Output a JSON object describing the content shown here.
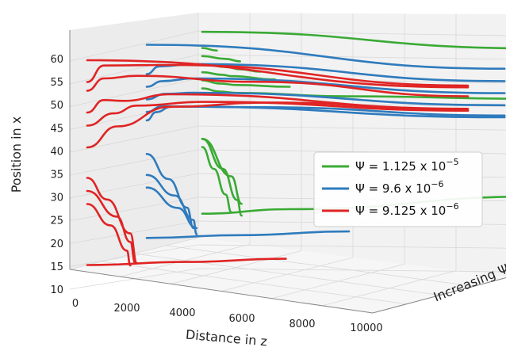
{
  "chart_data": {
    "type": "line",
    "projection": "3d",
    "xlabel": "Distance in z",
    "ylabel": "Position in x",
    "zlabel": "Increasing Ψ",
    "x_ticks": [
      "0",
      "2000",
      "4000",
      "6000",
      "8000",
      "10000"
    ],
    "y_ticks": [
      "10",
      "15",
      "20",
      "25",
      "30",
      "35",
      "40",
      "45",
      "50",
      "55",
      "60"
    ],
    "xlim": [
      0,
      11500
    ],
    "ylim": [
      8,
      68
    ],
    "grid": true,
    "legend_position": "right",
    "series": [
      {
        "name": "Ψ = 1.125 x 10⁻⁵",
        "label_base": "Ψ = 1.125 x 10",
        "label_exp": "−5",
        "color": "#3aaa35",
        "depth": 2,
        "lines": [
          [
            [
              0,
              37.5
            ],
            [
              400,
              32
            ],
            [
              800,
              25.5
            ],
            [
              1000,
              21
            ]
          ],
          [
            [
              0,
              39.5
            ],
            [
              700,
              32
            ],
            [
              1200,
              24
            ],
            [
              1350,
              20
            ]
          ],
          [
            [
              0,
              39.5
            ],
            [
              1000,
              30
            ],
            [
              1350,
              23
            ]
          ],
          [
            [
              0,
              21
            ],
            [
              3000,
              21
            ],
            [
              11500,
              21
            ]
          ],
          [
            [
              0,
              52
            ],
            [
              600,
              51.3
            ],
            [
              1200,
              51
            ],
            [
              5000,
              50.5
            ],
            [
              11500,
              50.5
            ]
          ],
          [
            [
              0,
              54
            ],
            [
              600,
              53.3
            ],
            [
              1200,
              53
            ],
            [
              3000,
              52.8
            ]
          ],
          [
            [
              0,
              56
            ],
            [
              700,
              55.5
            ],
            [
              1000,
              55.2
            ],
            [
              2500,
              54.6
            ]
          ],
          [
            [
              0,
              58
            ],
            [
              800,
              57.5
            ],
            [
              1300,
              57
            ],
            [
              2000,
              56.5
            ]
          ],
          [
            [
              0,
              60
            ],
            [
              800,
              59.5
            ],
            [
              1300,
              59
            ]
          ],
          [
            [
              0,
              62
            ],
            [
              500,
              61.5
            ]
          ],
          [
            [
              0,
              66
            ],
            [
              11500,
              65.7
            ]
          ]
        ]
      },
      {
        "name": "Ψ = 9.6 x 10⁻⁶",
        "label_base": "Ψ = 9.6 x 10",
        "label_exp": "−6",
        "color": "#2f7bbd",
        "depth": 1,
        "lines": [
          [
            [
              0,
              37
            ],
            [
              700,
              31
            ],
            [
              1300,
              24
            ],
            [
              1500,
              19
            ]
          ],
          [
            [
              0,
              32
            ],
            [
              900,
              27
            ],
            [
              1500,
              21
            ],
            [
              1600,
              17.5
            ]
          ],
          [
            [
              0,
              29
            ],
            [
              1000,
              24
            ],
            [
              1600,
              19
            ]
          ],
          [
            [
              0,
              17
            ],
            [
              3000,
              16.9
            ],
            [
              6500,
              16.9
            ]
          ],
          [
            [
              0,
              45
            ],
            [
              300,
              47
            ],
            [
              800,
              48.5
            ],
            [
              3500,
              49
            ],
            [
              11500,
              49
            ]
          ],
          [
            [
              0,
              47
            ],
            [
              500,
              48.5
            ],
            [
              1000,
              48.5
            ],
            [
              11500,
              48.5
            ]
          ],
          [
            [
              0,
              50
            ],
            [
              600,
              51.5
            ],
            [
              1500,
              52
            ],
            [
              11500,
              52
            ]
          ],
          [
            [
              0,
              53
            ],
            [
              500,
              54.5
            ],
            [
              1500,
              55.5
            ],
            [
              11500,
              55.5
            ]
          ],
          [
            [
              0,
              56
            ],
            [
              400,
              58
            ],
            [
              1500,
              59
            ],
            [
              11500,
              59
            ]
          ],
          [
            [
              0,
              63
            ],
            [
              11500,
              62.6
            ]
          ]
        ]
      },
      {
        "name": "Ψ = 9.125 x 10⁻⁶",
        "label_base": "Ψ = 9.125 x 10",
        "label_exp": "−6",
        "color": "#e02424",
        "depth": 0,
        "lines": [
          [
            [
              0,
              33
            ],
            [
              600,
              28
            ],
            [
              1300,
              20
            ],
            [
              1500,
              13
            ]
          ],
          [
            [
              0,
              30
            ],
            [
              900,
              24
            ],
            [
              1300,
              18
            ],
            [
              1450,
              13
            ]
          ],
          [
            [
              0,
              27
            ],
            [
              700,
              22
            ],
            [
              1200,
              16
            ],
            [
              1300,
              12.5
            ]
          ],
          [
            [
              0,
              13
            ],
            [
              3000,
              12.8
            ],
            [
              6000,
              12.6
            ]
          ],
          [
            [
              0,
              40
            ],
            [
              900,
              45
            ],
            [
              2500,
              50
            ],
            [
              5500,
              52
            ],
            [
              11500,
              52
            ]
          ],
          [
            [
              0,
              45
            ],
            [
              800,
              48
            ],
            [
              1500,
              50
            ],
            [
              3500,
              51.5
            ],
            [
              11500,
              52
            ]
          ],
          [
            [
              0,
              48
            ],
            [
              500,
              51
            ],
            [
              1100,
              51
            ],
            [
              2500,
              53
            ],
            [
              11500,
              52.5
            ]
          ],
          [
            [
              0,
              53
            ],
            [
              500,
              56
            ],
            [
              1500,
              57
            ],
            [
              5000,
              57
            ],
            [
              11500,
              56
            ]
          ],
          [
            [
              0,
              55
            ],
            [
              500,
              59
            ],
            [
              2500,
              60
            ],
            [
              11500,
              59
            ]
          ],
          [
            [
              0,
              60
            ],
            [
              11500,
              58.5
            ]
          ]
        ]
      }
    ]
  }
}
